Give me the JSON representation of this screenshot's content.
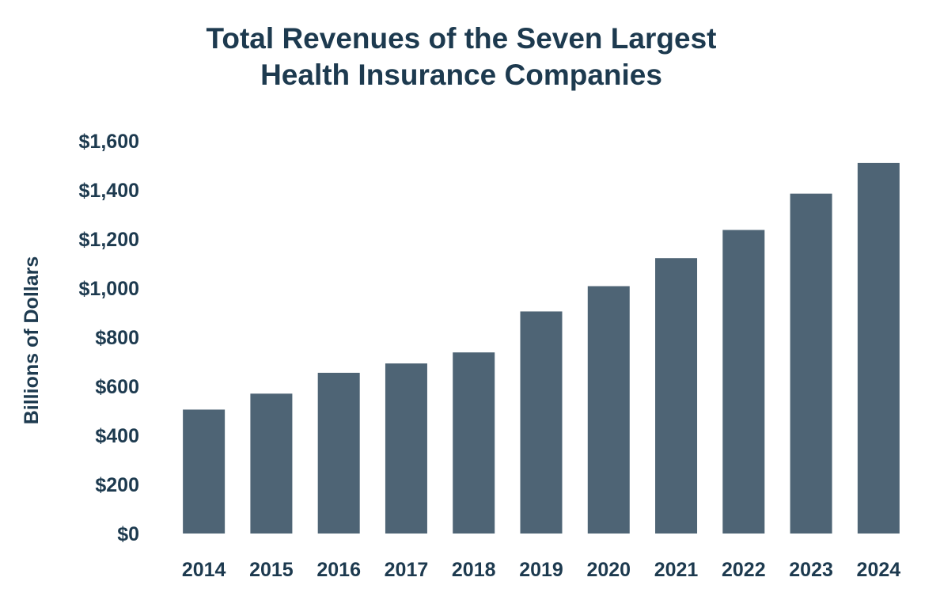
{
  "chart_data": {
    "type": "bar",
    "title_lines": [
      "Total Revenues of the Seven Largest",
      "Health Insurance Companies"
    ],
    "ylabel": "Billions of Dollars",
    "xlabel": "",
    "categories": [
      "2014",
      "2015",
      "2016",
      "2017",
      "2018",
      "2019",
      "2020",
      "2021",
      "2022",
      "2023",
      "2024"
    ],
    "values": [
      505,
      570,
      655,
      693,
      738,
      905,
      1008,
      1122,
      1237,
      1385,
      1510
    ],
    "ylim": [
      0,
      1600
    ],
    "yticks": [
      0,
      200,
      400,
      600,
      800,
      1000,
      1200,
      1400,
      1600
    ],
    "ytick_labels": [
      "$0",
      "$200",
      "$400",
      "$600",
      "$800",
      "$1,000",
      "$1,200",
      "$1,400",
      "$1,600"
    ],
    "grid": false,
    "legend": "none",
    "bar_color": "#4e6475",
    "text_color": "#1d3a4f"
  }
}
